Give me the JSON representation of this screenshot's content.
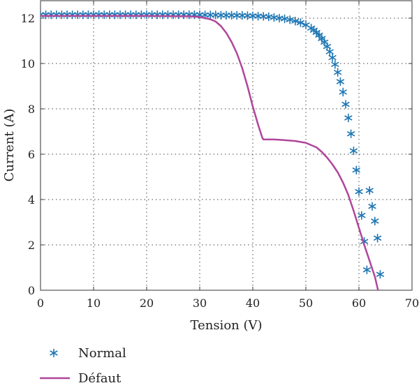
{
  "chart_data": {
    "type": "line",
    "title": "",
    "xlabel": "Tension (V)",
    "ylabel": "Current (A)",
    "xlim": [
      0,
      70
    ],
    "ylim": [
      0,
      12.8
    ],
    "xticks": [
      0,
      10,
      20,
      30,
      40,
      50,
      60,
      70
    ],
    "yticks": [
      0,
      2,
      4,
      6,
      8,
      10,
      12
    ],
    "grid": true,
    "legend_position": "bottom-left",
    "series": [
      {
        "name": "Normal",
        "style": "markers",
        "marker": "asterisk",
        "color": "#1f77b4",
        "x": [
          0,
          1,
          2,
          3,
          4,
          5,
          6,
          7,
          8,
          9,
          10,
          11,
          12,
          13,
          14,
          15,
          16,
          17,
          18,
          19,
          20,
          21,
          22,
          23,
          24,
          25,
          26,
          27,
          28,
          29,
          30,
          31,
          32,
          33,
          34,
          35,
          36,
          37,
          38,
          39,
          40,
          41,
          42,
          43,
          44,
          45,
          46,
          47,
          48,
          49,
          50,
          51,
          51.5,
          52,
          52.5,
          53,
          53.5,
          54,
          54.5,
          55,
          55.5,
          56,
          56.5,
          57,
          57.5,
          58,
          58.5,
          59,
          59.5,
          60,
          60.5,
          61,
          61.5,
          62,
          62.5,
          63,
          63.5,
          64
        ],
        "y": [
          12.15,
          12.15,
          12.15,
          12.15,
          12.15,
          12.15,
          12.15,
          12.15,
          12.15,
          12.15,
          12.15,
          12.15,
          12.15,
          12.15,
          12.15,
          12.15,
          12.15,
          12.15,
          12.15,
          12.15,
          12.15,
          12.15,
          12.15,
          12.15,
          12.15,
          12.15,
          12.15,
          12.15,
          12.15,
          12.15,
          12.15,
          12.14,
          12.14,
          12.14,
          12.13,
          12.13,
          12.13,
          12.12,
          12.12,
          12.11,
          12.1,
          12.09,
          12.08,
          12.06,
          12.03,
          12.0,
          11.97,
          11.93,
          11.87,
          11.8,
          11.7,
          11.56,
          11.47,
          11.37,
          11.25,
          11.1,
          10.94,
          10.75,
          10.52,
          10.26,
          9.96,
          9.61,
          9.2,
          8.74,
          8.2,
          7.6,
          6.9,
          6.15,
          5.3,
          4.35,
          3.3,
          2.15,
          0.9,
          4.4,
          3.7,
          3.05,
          2.3,
          0.7
        ]
      },
      {
        "name": "Défaut",
        "style": "line",
        "color": "#b0469a",
        "x": [
          0,
          10,
          20,
          28,
          30,
          32,
          33,
          34,
          35,
          36,
          37,
          38,
          39,
          40,
          41,
          41.8,
          42,
          44,
          46,
          48,
          50,
          52,
          53,
          54,
          55,
          56,
          57,
          58,
          59,
          60,
          61,
          62,
          63,
          63.6
        ],
        "y": [
          12.1,
          12.1,
          12.1,
          12.08,
          12.05,
          11.95,
          11.85,
          11.65,
          11.35,
          10.95,
          10.45,
          9.8,
          9.0,
          8.1,
          7.3,
          6.72,
          6.65,
          6.65,
          6.62,
          6.58,
          6.5,
          6.3,
          6.1,
          5.85,
          5.55,
          5.2,
          4.75,
          4.2,
          3.5,
          2.75,
          2.0,
          1.3,
          0.6,
          0
        ]
      }
    ]
  }
}
